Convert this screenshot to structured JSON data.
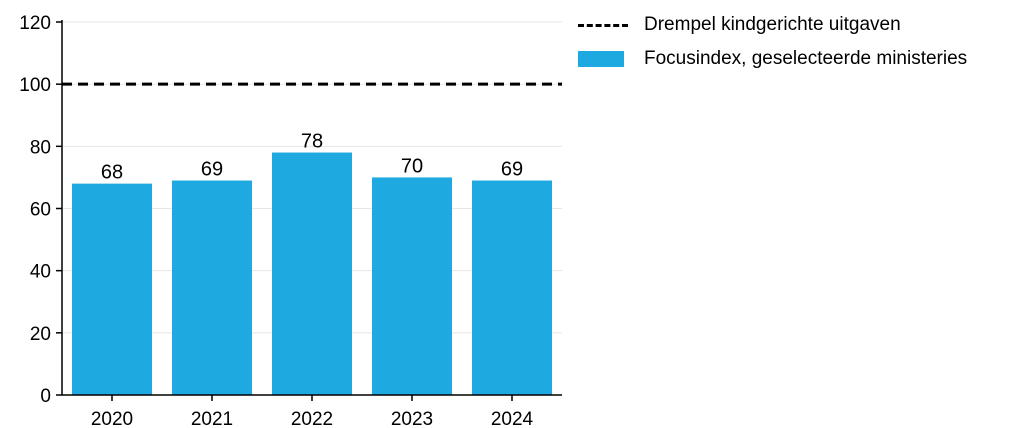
{
  "chart_data": {
    "type": "bar",
    "categories": [
      "2020",
      "2021",
      "2022",
      "2023",
      "2024"
    ],
    "series": [
      {
        "name": "Focusindex, geselecteerde ministeries",
        "values": [
          68,
          69,
          78,
          70,
          69
        ],
        "color": "#1ea9e1"
      }
    ],
    "reference_line": {
      "name": "Drempel kindgerichte uitgaven",
      "value": 100,
      "style": "dashed",
      "color": "#000000"
    },
    "data_labels": [
      "68",
      "69",
      "78",
      "70",
      "69"
    ],
    "ylim": [
      0,
      120
    ],
    "yticks": [
      0,
      20,
      40,
      60,
      80,
      100,
      120
    ],
    "title": "",
    "xlabel": "",
    "ylabel": "",
    "grid": "horizontal",
    "legend_position": "top-right"
  },
  "legend": {
    "line_label": "Drempel kindgerichte uitgaven",
    "bar_label": "Focusindex, geselecteerde ministeries"
  }
}
